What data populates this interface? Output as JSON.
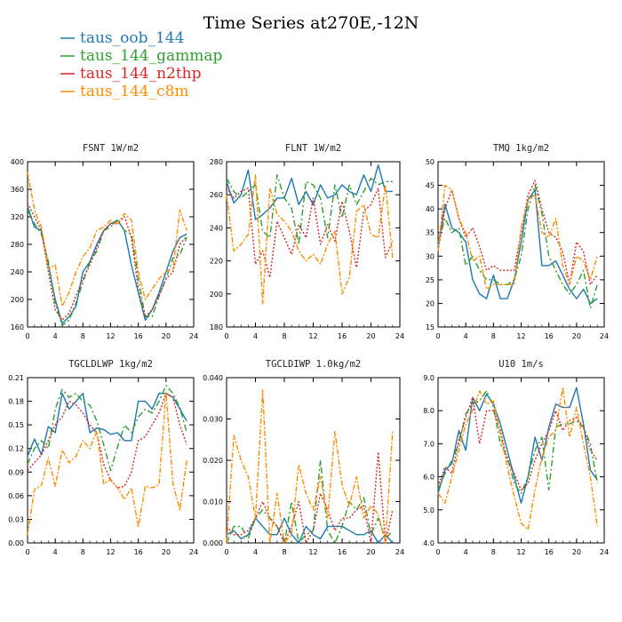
{
  "figure": {
    "title": "Time Series at270E,-12N"
  },
  "legend": [
    {
      "name": "taus_oob_144",
      "color": "#1f77b4",
      "dash": "solid"
    },
    {
      "name": "taus_144_gammap",
      "color": "#2ca02c",
      "dash": "dashdot"
    },
    {
      "name": "taus_144_n2thp",
      "color": "#d62728",
      "dash": "dotted"
    },
    {
      "name": "taus_144_c8m",
      "color": "#ff8c00",
      "dash": "dashdot2"
    }
  ],
  "chart_data": [
    {
      "type": "line",
      "title": "FSNT   1W/m2",
      "x": [
        0,
        1,
        2,
        3,
        4,
        5,
        6,
        7,
        8,
        9,
        10,
        11,
        12,
        13,
        14,
        15,
        16,
        17,
        18,
        19,
        20,
        21,
        22,
        23
      ],
      "xlim": [
        0,
        24
      ],
      "xticks": [
        "0",
        "4",
        "8",
        "12",
        "16",
        "20",
        "24"
      ],
      "ylim": [
        160,
        400
      ],
      "yticks": [
        "160",
        "200",
        "240",
        "280",
        "320",
        "360",
        "400"
      ],
      "series": [
        {
          "values": [
            335,
            305,
            300,
            250,
            200,
            165,
            175,
            190,
            240,
            255,
            280,
            300,
            310,
            315,
            300,
            250,
            210,
            170,
            185,
            210,
            240,
            270,
            290,
            295
          ]
        },
        {
          "values": [
            330,
            310,
            295,
            255,
            195,
            162,
            170,
            195,
            225,
            255,
            270,
            300,
            305,
            315,
            300,
            295,
            230,
            175,
            175,
            205,
            230,
            260,
            265,
            290
          ]
        },
        {
          "values": [
            340,
            320,
            300,
            240,
            185,
            170,
            180,
            205,
            230,
            250,
            275,
            300,
            310,
            310,
            320,
            290,
            215,
            175,
            185,
            205,
            230,
            240,
            280,
            292
          ]
        },
        {
          "values": [
            385,
            330,
            305,
            245,
            250,
            190,
            210,
            240,
            262,
            275,
            300,
            305,
            315,
            310,
            325,
            315,
            240,
            200,
            215,
            230,
            240,
            245,
            330,
            300
          ]
        }
      ]
    },
    {
      "type": "line",
      "title": "FLNT   1W/m2",
      "x": [
        0,
        1,
        2,
        3,
        4,
        5,
        6,
        7,
        8,
        9,
        10,
        11,
        12,
        13,
        14,
        15,
        16,
        17,
        18,
        19,
        20,
        21,
        22,
        23
      ],
      "xlim": [
        0,
        24
      ],
      "xticks": [
        "0",
        "4",
        "8",
        "12",
        "16",
        "20",
        "24"
      ],
      "ylim": [
        180,
        280
      ],
      "yticks": [
        "180",
        "200",
        "220",
        "240",
        "260",
        "280"
      ],
      "series": [
        {
          "values": [
            268,
            255,
            260,
            275,
            245,
            248,
            252,
            258,
            258,
            270,
            254,
            262,
            254,
            266,
            258,
            260,
            266,
            262,
            260,
            272,
            262,
            278,
            262,
            262
          ]
        },
        {
          "values": [
            270,
            262,
            258,
            262,
            266,
            238,
            234,
            272,
            258,
            252,
            230,
            268,
            266,
            258,
            234,
            266,
            246,
            266,
            254,
            262,
            270,
            266,
            268,
            268
          ]
        },
        {
          "values": [
            264,
            258,
            262,
            264,
            218,
            226,
            210,
            244,
            234,
            224,
            242,
            234,
            258,
            230,
            242,
            232,
            256,
            238,
            216,
            250,
            254,
            264,
            222,
            232
          ]
        },
        {
          "values": [
            260,
            226,
            230,
            236,
            272,
            194,
            264,
            248,
            244,
            238,
            226,
            220,
            224,
            218,
            230,
            238,
            200,
            210,
            250,
            254,
            236,
            234,
            266,
            222
          ]
        }
      ]
    },
    {
      "type": "line",
      "title": "TMQ   1kg/m2",
      "x": [
        0,
        1,
        2,
        3,
        4,
        5,
        6,
        7,
        8,
        9,
        10,
        11,
        12,
        13,
        14,
        15,
        16,
        17,
        18,
        19,
        20,
        21,
        22,
        23
      ],
      "xlim": [
        0,
        24
      ],
      "xticks": [
        "0",
        "4",
        "8",
        "12",
        "16",
        "20",
        "24"
      ],
      "ylim": [
        15,
        50
      ],
      "yticks": [
        "15",
        "20",
        "25",
        "30",
        "35",
        "40",
        "45",
        "50"
      ],
      "series": [
        {
          "values": [
            32,
            41,
            36,
            35,
            33,
            25,
            22,
            21,
            26,
            21,
            21,
            25,
            33,
            42,
            44,
            28,
            28,
            29,
            26,
            23,
            21,
            23,
            20,
            21
          ]
        },
        {
          "values": [
            33,
            38,
            35,
            36,
            28,
            30,
            27,
            25,
            25,
            24,
            24,
            25,
            30,
            40,
            45,
            39,
            30,
            27,
            24,
            22,
            24,
            27,
            19,
            24
          ]
        },
        {
          "values": [
            31,
            40,
            44,
            38,
            34,
            36,
            32,
            27,
            28,
            27,
            27,
            27,
            35,
            43,
            46,
            40,
            35,
            34,
            31,
            24,
            33,
            31,
            24,
            26
          ]
        },
        {
          "values": [
            31,
            45,
            44,
            38,
            35,
            29,
            30,
            23,
            24,
            24,
            24,
            24,
            36,
            42,
            43,
            35,
            34,
            38,
            28,
            24,
            30,
            29,
            25,
            30
          ]
        }
      ]
    },
    {
      "type": "line",
      "title": "TGCLDLWP   1kg/m2",
      "x": [
        0,
        1,
        2,
        3,
        4,
        5,
        6,
        7,
        8,
        9,
        10,
        11,
        12,
        13,
        14,
        15,
        16,
        17,
        18,
        19,
        20,
        21,
        22,
        23
      ],
      "xlim": [
        0,
        24
      ],
      "xticks": [
        "0",
        "4",
        "8",
        "12",
        "16",
        "20",
        "24"
      ],
      "ylim": [
        0,
        0.21
      ],
      "yticks": [
        "0.00",
        "0.03",
        "0.06",
        "0.09",
        "0.12",
        "0.15",
        "0.18",
        "0.21"
      ],
      "series": [
        {
          "values": [
            0.11,
            0.132,
            0.112,
            0.148,
            0.14,
            0.19,
            0.17,
            0.18,
            0.19,
            0.14,
            0.146,
            0.144,
            0.138,
            0.14,
            0.13,
            0.13,
            0.18,
            0.18,
            0.17,
            0.19,
            0.19,
            0.185,
            0.17,
            0.155
          ]
        },
        {
          "values": [
            0.1,
            0.12,
            0.13,
            0.12,
            0.17,
            0.195,
            0.185,
            0.19,
            0.18,
            0.175,
            0.155,
            0.125,
            0.092,
            0.122,
            0.15,
            0.14,
            0.16,
            0.17,
            0.165,
            0.18,
            0.2,
            0.19,
            0.172,
            0.14
          ]
        },
        {
          "values": [
            0.092,
            0.102,
            0.112,
            0.13,
            0.15,
            0.16,
            0.18,
            0.175,
            0.165,
            0.15,
            0.14,
            0.1,
            0.08,
            0.07,
            0.072,
            0.09,
            0.13,
            0.135,
            0.15,
            0.165,
            0.19,
            0.185,
            0.15,
            0.125
          ]
        },
        {
          "values": [
            0.01,
            0.068,
            0.073,
            0.108,
            0.072,
            0.118,
            0.102,
            0.11,
            0.13,
            0.12,
            0.142,
            0.075,
            0.081,
            0.07,
            0.055,
            0.07,
            0.02,
            0.072,
            0.07,
            0.074,
            0.192,
            0.075,
            0.042,
            0.105
          ]
        }
      ]
    },
    {
      "type": "line",
      "title": "TGCLDIWP   1.0kg/m2",
      "x": [
        0,
        1,
        2,
        3,
        4,
        5,
        6,
        7,
        8,
        9,
        10,
        11,
        12,
        13,
        14,
        15,
        16,
        17,
        18,
        19,
        20,
        21,
        22,
        23
      ],
      "xlim": [
        0,
        24
      ],
      "xticks": [
        "0",
        "4",
        "8",
        "12",
        "16",
        "20",
        "24"
      ],
      "ylim": [
        0,
        0.04
      ],
      "yticks": [
        "0.000",
        "0.010",
        "0.020",
        "0.030",
        "0.040"
      ],
      "series": [
        {
          "values": [
            0.002,
            0.003,
            0.001,
            0.002,
            0.006,
            0.004,
            0.002,
            0.002,
            0.006,
            0.002,
            0.0,
            0.004,
            0.002,
            0.001,
            0.004,
            0.004,
            0.004,
            0.003,
            0.002,
            0.002,
            0.003,
            0.0,
            0.002,
            0.0
          ]
        },
        {
          "values": [
            0.0,
            0.004,
            0.004,
            0.001,
            0.006,
            0.008,
            0.006,
            0.004,
            0.0,
            0.01,
            0.0,
            0.002,
            0.003,
            0.02,
            0.003,
            0.0,
            0.004,
            0.01,
            0.008,
            0.011,
            0.002,
            0.006,
            0.001,
            0.003
          ]
        },
        {
          "values": [
            0.004,
            0.002,
            0.002,
            0.003,
            0.006,
            0.01,
            0.006,
            0.004,
            0.0,
            0.004,
            0.01,
            0.0,
            0.003,
            0.012,
            0.008,
            0.003,
            0.006,
            0.006,
            0.008,
            0.009,
            0.0,
            0.022,
            0.0,
            0.008
          ]
        },
        {
          "values": [
            0.0,
            0.026,
            0.02,
            0.016,
            0.006,
            0.037,
            0.0,
            0.012,
            0.0,
            0.002,
            0.019,
            0.012,
            0.008,
            0.016,
            0.006,
            0.027,
            0.014,
            0.009,
            0.016,
            0.006,
            0.009,
            0.007,
            0.0,
            0.027
          ]
        }
      ]
    },
    {
      "type": "line",
      "title": "U10   1m/s",
      "x": [
        0,
        1,
        2,
        3,
        4,
        5,
        6,
        7,
        8,
        9,
        10,
        11,
        12,
        13,
        14,
        15,
        16,
        17,
        18,
        19,
        20,
        21,
        22,
        23
      ],
      "xlim": [
        0,
        24
      ],
      "xticks": [
        "0",
        "4",
        "8",
        "12",
        "16",
        "20",
        "24"
      ],
      "ylim": [
        4.0,
        9.0
      ],
      "yticks": [
        "4.0",
        "5.0",
        "6.0",
        "7.0",
        "8.0",
        "9.0"
      ],
      "series": [
        {
          "values": [
            5.5,
            6.2,
            6.4,
            7.4,
            6.8,
            8.4,
            8.0,
            8.5,
            8.2,
            7.6,
            6.8,
            6.0,
            5.2,
            6.0,
            7.2,
            6.5,
            7.5,
            8.2,
            8.1,
            8.1,
            8.7,
            7.6,
            6.2,
            5.9
          ]
        },
        {
          "values": [
            5.6,
            6.1,
            6.5,
            7.0,
            7.9,
            8.2,
            8.3,
            8.6,
            8.1,
            7.0,
            6.6,
            5.8,
            5.5,
            6.0,
            6.8,
            7.2,
            5.6,
            7.5,
            7.6,
            7.6,
            7.7,
            7.5,
            7.0,
            5.8
          ]
        },
        {
          "values": [
            5.7,
            6.3,
            6.1,
            7.1,
            7.8,
            8.4,
            7.0,
            8.0,
            8.0,
            7.4,
            6.5,
            6.1,
            5.6,
            5.8,
            6.5,
            7.0,
            7.4,
            8.0,
            7.4,
            7.7,
            7.8,
            7.5,
            6.8,
            6.5
          ]
        },
        {
          "values": [
            5.5,
            5.2,
            6.0,
            6.8,
            7.6,
            8.0,
            8.6,
            8.2,
            8.3,
            7.3,
            6.3,
            5.4,
            4.6,
            4.4,
            5.6,
            6.6,
            7.2,
            7.4,
            8.7,
            7.2,
            8.1,
            7.0,
            6.0,
            4.5
          ]
        }
      ]
    }
  ]
}
